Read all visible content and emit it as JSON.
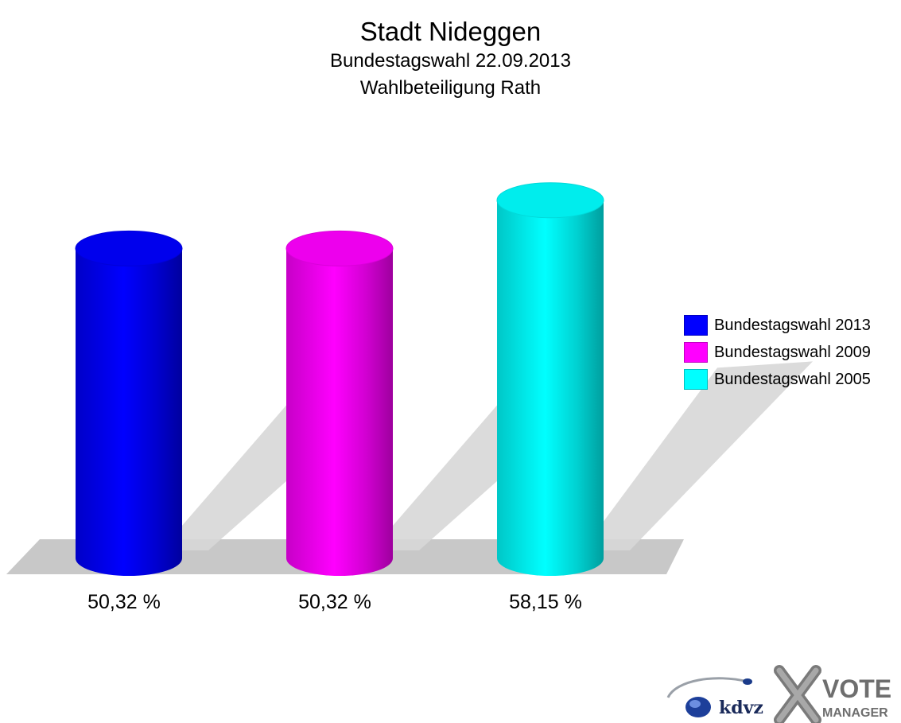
{
  "chart_data": {
    "type": "bar",
    "title": "Stadt Nideggen",
    "subtitle": [
      "Bundestagswahl 22.09.2013",
      "Wahlbeteiligung Rath"
    ],
    "categories": [
      "Bundestagswahl 2013",
      "Bundestagswahl 2009",
      "Bundestagswahl 2005"
    ],
    "values": [
      50.32,
      50.32,
      58.15
    ],
    "value_labels": [
      "50,32 %",
      "50,32 %",
      "58,15 %"
    ],
    "colors": [
      "#0000ff",
      "#ff00ff",
      "#00ffff"
    ],
    "bar_style": "3d-cylinder",
    "ylim": [
      0,
      70
    ],
    "grid": false,
    "legend_position": "right"
  },
  "logo": {
    "brand_text": "kdvz",
    "product_text_1": "VOTE",
    "product_text_2": "MANAGER"
  }
}
